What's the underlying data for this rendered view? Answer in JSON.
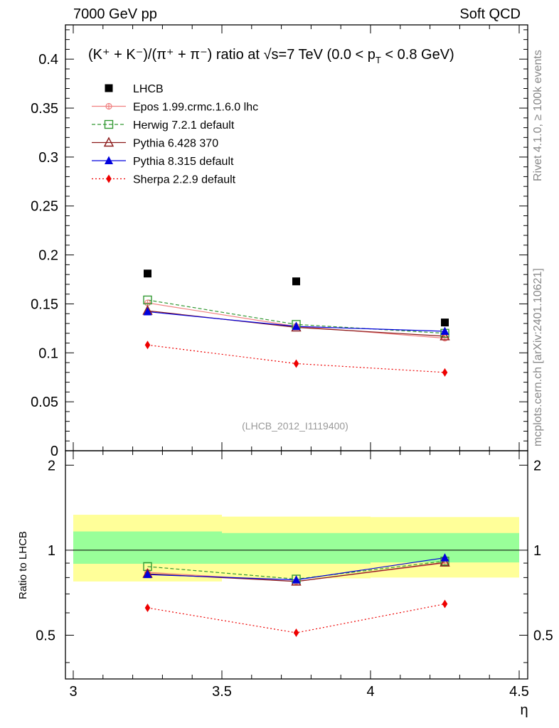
{
  "header": {
    "left": "7000 GeV pp",
    "right": "Soft QCD"
  },
  "side": {
    "rivet": "Rivet 4.1.0, ≥ 100k events",
    "mcplots": "mcplots.cern.ch [arXiv:2401.10621]"
  },
  "chart_data": {
    "type": "scatter",
    "title": "(K⁺ + K⁻)/(π⁺ + π⁻) ratio at √s=7 TeV (0.0 < p",
    "title_sub": "T",
    "title_end": " < 0.8 GeV)",
    "analysis_id": "(LHCB_2012_I1119400)",
    "xlabel": "η",
    "ratio_ylabel": "Ratio to LHCB",
    "xlim": [
      3.0,
      4.5
    ],
    "ylim": [
      0,
      0.435
    ],
    "ratio_ylim": [
      0.35,
      2.25
    ],
    "x_ticks": [
      3,
      3.5,
      4,
      4.5
    ],
    "x_tick_labels": [
      "3",
      "3.5",
      "4",
      "4.5"
    ],
    "y_ticks": [
      0,
      0.05,
      0.1,
      0.15,
      0.2,
      0.25,
      0.3,
      0.35,
      0.4
    ],
    "y_tick_labels": [
      "0",
      "0.05",
      "0.1",
      "0.15",
      "0.2",
      "0.25",
      "0.3",
      "0.35",
      "0.4"
    ],
    "ratio_ticks": [
      0.5,
      1,
      2
    ],
    "ratio_tick_labels": [
      "0.5",
      "1",
      "2"
    ],
    "x": [
      3.25,
      3.75,
      4.25
    ],
    "data": {
      "name": "LHCB",
      "values": [
        0.181,
        0.173,
        0.131
      ],
      "color": "#000000"
    },
    "bins": [
      {
        "lo": 3.0,
        "hi": 3.5,
        "ratio_band_inner": [
          0.895,
          1.165
        ],
        "ratio_band_outer": [
          0.775,
          1.335
        ]
      },
      {
        "lo": 3.5,
        "hi": 4.0,
        "ratio_band_inner": [
          0.895,
          1.15
        ],
        "ratio_band_outer": [
          0.795,
          1.315
        ]
      },
      {
        "lo": 4.0,
        "hi": 4.5,
        "ratio_band_inner": [
          0.905,
          1.15
        ],
        "ratio_band_outer": [
          0.8,
          1.31
        ]
      }
    ],
    "series": [
      {
        "name": "Epos 1.99.crmc.1.6.0 lhc",
        "values": [
          0.151,
          0.127,
          0.115
        ],
        "ratio": [
          0.835,
          0.775,
          0.9
        ],
        "color": "#f08080",
        "dash": "",
        "marker": "cross"
      },
      {
        "name": "Herwig 7.2.1 default",
        "values": [
          0.154,
          0.129,
          0.12
        ],
        "ratio": [
          0.875,
          0.79,
          0.915
        ],
        "color": "#339933",
        "dash": "5,3",
        "marker": "square-open"
      },
      {
        "name": "Pythia 6.428 370",
        "values": [
          0.143,
          0.126,
          0.117
        ],
        "ratio": [
          0.825,
          0.775,
          0.905
        ],
        "color": "#8b1a1a",
        "dash": "",
        "marker": "triangle-open"
      },
      {
        "name": "Pythia 8.315 default",
        "values": [
          0.142,
          0.127,
          0.122
        ],
        "ratio": [
          0.82,
          0.785,
          0.94
        ],
        "color": "#0000dd",
        "dash": "",
        "marker": "triangle"
      },
      {
        "name": "Sherpa 2.2.9 default",
        "values": [
          0.108,
          0.089,
          0.08
        ],
        "ratio": [
          0.625,
          0.51,
          0.645
        ],
        "color": "#ee0000",
        "dash": "2,3",
        "marker": "diamond"
      }
    ],
    "colors": {
      "band_inner": "#99ff99",
      "band_outer": "#ffff99",
      "frame": "#000000",
      "axis_text": "#000000",
      "id_text": "#999999"
    }
  }
}
